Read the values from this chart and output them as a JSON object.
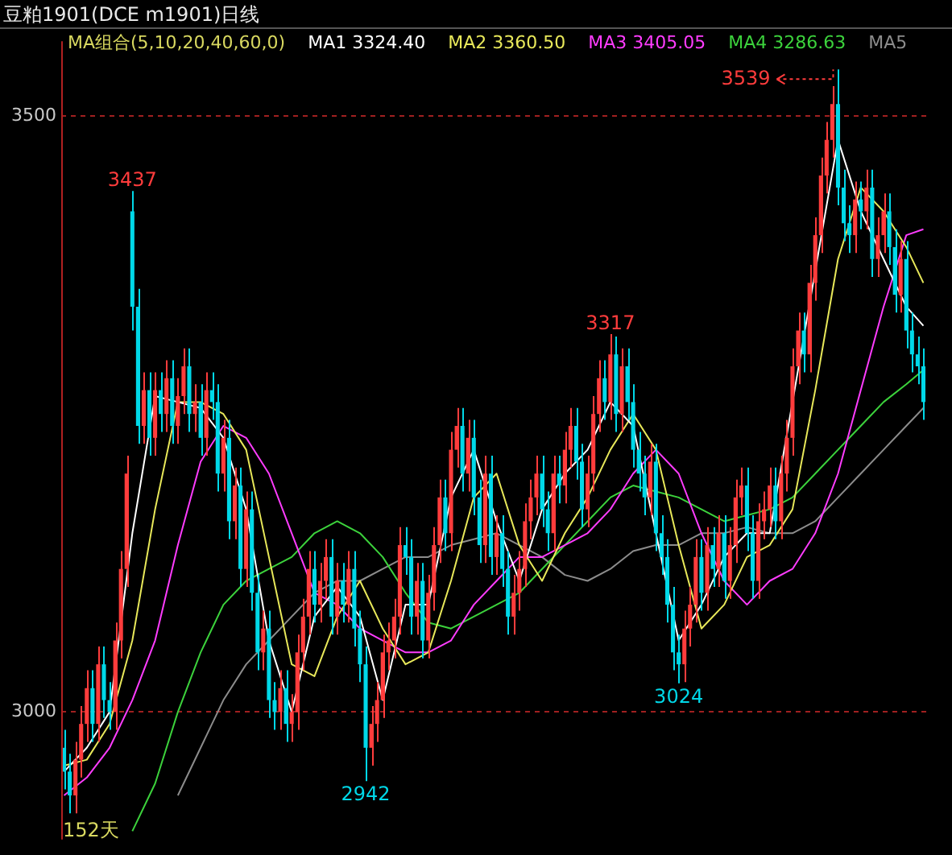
{
  "chart_data": {
    "type": "candlestick",
    "title": "豆粕1901(DCE m1901)日线",
    "legend_title": "MA组合(5,10,20,40,60,0)",
    "legend": "top",
    "grid": "y",
    "tick_labels": "y",
    "ylim": [
      2893,
      3560
    ],
    "yticks": [
      3000,
      3500
    ],
    "categories": [
      null,
      null,
      null,
      null,
      null,
      null,
      null,
      null,
      null,
      null,
      null,
      null,
      null,
      null,
      null,
      null,
      null,
      null,
      null,
      null,
      null,
      null,
      null,
      null,
      null,
      null,
      null,
      null,
      null,
      null,
      null,
      null,
      null,
      null,
      null,
      null,
      null,
      null,
      null,
      null,
      null,
      null,
      null,
      null,
      null,
      null,
      null,
      null,
      null,
      null,
      null,
      null,
      null,
      null,
      null,
      null,
      null,
      null,
      null,
      null,
      null,
      null,
      null,
      null,
      null,
      null,
      null,
      null,
      null,
      null,
      null,
      null,
      null,
      null,
      null,
      null,
      null,
      null,
      null,
      null,
      null,
      null,
      null,
      null,
      null,
      null,
      null,
      null,
      null,
      null,
      null,
      null,
      null,
      null,
      null,
      null,
      null,
      null,
      null,
      null,
      null,
      null,
      null,
      null,
      null,
      null,
      null,
      null,
      null,
      null,
      null,
      null,
      null,
      null,
      null,
      null,
      null,
      null,
      null,
      null,
      null,
      null,
      null,
      null,
      null,
      null,
      null,
      null,
      null,
      null,
      null,
      null,
      null,
      null,
      null,
      null,
      null,
      null,
      null,
      null,
      null,
      null,
      null,
      null,
      null,
      null,
      null,
      null,
      null,
      null,
      null,
      null
    ],
    "ohlc": [
      [
        2970,
        2985,
        2935,
        2950
      ],
      [
        2950,
        2965,
        2915,
        2930
      ],
      [
        2930,
        2975,
        2915,
        2960
      ],
      [
        2960,
        3005,
        2945,
        2990
      ],
      [
        2990,
        3035,
        2975,
        3020
      ],
      [
        3020,
        3035,
        2975,
        2990
      ],
      [
        2990,
        3055,
        2975,
        3040
      ],
      [
        3040,
        3055,
        2995,
        3010
      ],
      [
        3010,
        3025,
        2985,
        3000
      ],
      [
        3000,
        3075,
        2985,
        3060
      ],
      [
        3060,
        3135,
        3045,
        3120
      ],
      [
        3120,
        3215,
        3105,
        3200
      ],
      [
        3420,
        3437,
        3320,
        3340
      ],
      [
        3340,
        3355,
        3225,
        3240
      ],
      [
        3240,
        3285,
        3225,
        3270
      ],
      [
        3270,
        3285,
        3215,
        3230
      ],
      [
        3230,
        3285,
        3215,
        3270
      ],
      [
        3270,
        3285,
        3235,
        3250
      ],
      [
        3250,
        3295,
        3235,
        3280
      ],
      [
        3280,
        3295,
        3225,
        3240
      ],
      [
        3240,
        3280,
        3225,
        3265
      ],
      [
        3265,
        3305,
        3250,
        3290
      ],
      [
        3290,
        3305,
        3235,
        3250
      ],
      [
        3250,
        3275,
        3235,
        3260
      ],
      [
        3260,
        3275,
        3215,
        3230
      ],
      [
        3230,
        3285,
        3215,
        3270
      ],
      [
        3270,
        3285,
        3245,
        3260
      ],
      [
        3260,
        3275,
        3185,
        3200
      ],
      [
        3200,
        3245,
        3185,
        3230
      ],
      [
        3230,
        3245,
        3145,
        3160
      ],
      [
        3160,
        3205,
        3145,
        3190
      ],
      [
        3190,
        3205,
        3105,
        3120
      ],
      [
        3120,
        3185,
        3105,
        3170
      ],
      [
        3170,
        3185,
        3085,
        3100
      ],
      [
        3100,
        3115,
        3035,
        3050
      ],
      [
        3050,
        3085,
        3035,
        3070
      ],
      [
        3070,
        3085,
        2995,
        3010
      ],
      [
        3010,
        3025,
        2985,
        3000
      ],
      [
        3000,
        3035,
        2985,
        3020
      ],
      [
        3020,
        3035,
        2975,
        2990
      ],
      [
        2990,
        3015,
        2975,
        3000
      ],
      [
        3000,
        3065,
        2985,
        3050
      ],
      [
        3050,
        3095,
        3035,
        3080
      ],
      [
        3080,
        3135,
        3065,
        3120
      ],
      [
        3120,
        3135,
        3075,
        3090
      ],
      [
        3090,
        3125,
        3075,
        3110
      ],
      [
        3110,
        3145,
        3095,
        3130
      ],
      [
        3130,
        3145,
        3065,
        3080
      ],
      [
        3080,
        3125,
        3065,
        3110
      ],
      [
        3110,
        3125,
        3075,
        3090
      ],
      [
        3090,
        3135,
        3075,
        3120
      ],
      [
        3120,
        3135,
        3055,
        3070
      ],
      [
        3070,
        3085,
        3025,
        3040
      ],
      [
        3040,
        3055,
        2942,
        2970
      ],
      [
        2970,
        3005,
        2955,
        2990
      ],
      [
        2990,
        3025,
        2975,
        3010
      ],
      [
        3010,
        3065,
        2995,
        3050
      ],
      [
        3050,
        3075,
        3035,
        3060
      ],
      [
        3060,
        3095,
        3045,
        3080
      ],
      [
        3080,
        3155,
        3065,
        3140
      ],
      [
        3140,
        3155,
        3115,
        3130
      ],
      [
        3130,
        3145,
        3065,
        3080
      ],
      [
        3080,
        3125,
        3065,
        3110
      ],
      [
        3110,
        3125,
        3045,
        3060
      ],
      [
        3060,
        3115,
        3045,
        3100
      ],
      [
        3100,
        3155,
        3085,
        3140
      ],
      [
        3140,
        3195,
        3125,
        3180
      ],
      [
        3180,
        3195,
        3135,
        3150
      ],
      [
        3150,
        3235,
        3135,
        3220
      ],
      [
        3220,
        3255,
        3205,
        3240
      ],
      [
        3240,
        3255,
        3185,
        3200
      ],
      [
        3200,
        3245,
        3185,
        3230
      ],
      [
        3230,
        3245,
        3165,
        3180
      ],
      [
        3180,
        3195,
        3125,
        3140
      ],
      [
        3140,
        3215,
        3125,
        3200
      ],
      [
        3200,
        3215,
        3115,
        3130
      ],
      [
        3130,
        3165,
        3115,
        3150
      ],
      [
        3150,
        3165,
        3105,
        3120
      ],
      [
        3120,
        3135,
        3065,
        3080
      ],
      [
        3080,
        3115,
        3065,
        3100
      ],
      [
        3100,
        3135,
        3085,
        3120
      ],
      [
        3120,
        3175,
        3105,
        3160
      ],
      [
        3160,
        3195,
        3145,
        3180
      ],
      [
        3180,
        3215,
        3165,
        3200
      ],
      [
        3200,
        3215,
        3155,
        3170
      ],
      [
        3170,
        3185,
        3135,
        3150
      ],
      [
        3150,
        3215,
        3135,
        3200
      ],
      [
        3200,
        3215,
        3175,
        3190
      ],
      [
        3190,
        3235,
        3175,
        3220
      ],
      [
        3220,
        3255,
        3205,
        3240
      ],
      [
        3240,
        3255,
        3195,
        3210
      ],
      [
        3210,
        3225,
        3155,
        3170
      ],
      [
        3170,
        3215,
        3155,
        3200
      ],
      [
        3200,
        3265,
        3185,
        3250
      ],
      [
        3250,
        3295,
        3235,
        3280
      ],
      [
        3280,
        3295,
        3245,
        3260
      ],
      [
        3260,
        3317,
        3245,
        3300
      ],
      [
        3300,
        3315,
        3235,
        3250
      ],
      [
        3250,
        3305,
        3235,
        3290
      ],
      [
        3290,
        3305,
        3245,
        3260
      ],
      [
        3260,
        3275,
        3205,
        3220
      ],
      [
        3220,
        3235,
        3185,
        3200
      ],
      [
        3200,
        3215,
        3165,
        3180
      ],
      [
        3180,
        3225,
        3165,
        3210
      ],
      [
        3210,
        3225,
        3135,
        3150
      ],
      [
        3150,
        3165,
        3115,
        3130
      ],
      [
        3130,
        3145,
        3075,
        3090
      ],
      [
        3090,
        3105,
        3035,
        3050
      ],
      [
        3050,
        3065,
        3024,
        3040
      ],
      [
        3040,
        3085,
        3025,
        3070
      ],
      [
        3070,
        3105,
        3055,
        3090
      ],
      [
        3090,
        3145,
        3075,
        3130
      ],
      [
        3130,
        3145,
        3085,
        3100
      ],
      [
        3100,
        3155,
        3085,
        3140
      ],
      [
        3140,
        3155,
        3105,
        3120
      ],
      [
        3120,
        3165,
        3105,
        3150
      ],
      [
        3150,
        3165,
        3095,
        3110
      ],
      [
        3110,
        3155,
        3095,
        3140
      ],
      [
        3140,
        3195,
        3125,
        3180
      ],
      [
        3180,
        3205,
        3165,
        3190
      ],
      [
        3190,
        3205,
        3135,
        3150
      ],
      [
        3150,
        3165,
        3095,
        3110
      ],
      [
        3110,
        3175,
        3095,
        3160
      ],
      [
        3160,
        3185,
        3145,
        3170
      ],
      [
        3170,
        3205,
        3155,
        3190
      ],
      [
        3190,
        3205,
        3145,
        3160
      ],
      [
        3160,
        3215,
        3145,
        3200
      ],
      [
        3200,
        3245,
        3185,
        3230
      ],
      [
        3230,
        3305,
        3215,
        3290
      ],
      [
        3290,
        3335,
        3275,
        3320
      ],
      [
        3320,
        3335,
        3285,
        3300
      ],
      [
        3300,
        3375,
        3285,
        3360
      ],
      [
        3360,
        3415,
        3345,
        3400
      ],
      [
        3400,
        3465,
        3385,
        3450
      ],
      [
        3450,
        3495,
        3435,
        3480
      ],
      [
        3480,
        3525,
        3465,
        3510
      ],
      [
        3510,
        3539,
        3425,
        3440
      ],
      [
        3440,
        3455,
        3395,
        3410
      ],
      [
        3410,
        3425,
        3385,
        3400
      ],
      [
        3400,
        3445,
        3385,
        3430
      ],
      [
        3430,
        3445,
        3405,
        3420
      ],
      [
        3420,
        3455,
        3405,
        3440
      ],
      [
        3440,
        3455,
        3365,
        3380
      ],
      [
        3380,
        3415,
        3365,
        3400
      ],
      [
        3400,
        3435,
        3385,
        3420
      ],
      [
        3420,
        3435,
        3375,
        3390
      ],
      [
        3390,
        3405,
        3335,
        3350
      ],
      [
        3350,
        3395,
        3335,
        3380
      ],
      [
        3380,
        3395,
        3305,
        3320
      ],
      [
        3320,
        3335,
        3285,
        3300
      ],
      [
        3300,
        3315,
        3275,
        3290
      ],
      [
        3290,
        3305,
        3245,
        3260
      ]
    ],
    "series": [
      {
        "name": "MA1 3324.40",
        "type": "line",
        "color": "#ffffff",
        "values": [
          2950,
          null,
          null,
          null,
          2970,
          null,
          null,
          null,
          3000,
          null,
          null,
          null,
          3150,
          null,
          null,
          null,
          3265,
          null,
          null,
          null,
          3260,
          null,
          null,
          null,
          3255,
          null,
          null,
          null,
          3230,
          null,
          null,
          null,
          3170,
          null,
          null,
          null,
          3060,
          null,
          null,
          null,
          3000,
          null,
          null,
          null,
          3080,
          null,
          null,
          null,
          3105,
          null,
          null,
          null,
          3080,
          null,
          null,
          null,
          3010,
          null,
          null,
          null,
          3090,
          null,
          null,
          null,
          3090,
          null,
          null,
          null,
          3180,
          null,
          null,
          null,
          3220,
          null,
          null,
          null,
          3160,
          null,
          null,
          null,
          3110,
          null,
          null,
          null,
          3170,
          null,
          null,
          null,
          3200,
          null,
          null,
          null,
          3220,
          null,
          null,
          null,
          3260,
          null,
          null,
          null,
          3240,
          null,
          null,
          null,
          null,
          null,
          null,
          null,
          3060,
          null,
          null,
          null,
          3090,
          null,
          null,
          null,
          3130,
          null,
          null,
          null,
          3150,
          null,
          null,
          null,
          3150,
          null,
          null,
          null,
          null,
          null,
          null,
          null,
          null,
          null,
          null,
          null,
          3480,
          null,
          null,
          null,
          3420,
          null,
          null,
          null,
          3380,
          null,
          null,
          null,
          3340,
          null,
          null,
          3324
        ]
      },
      {
        "name": "MA2 3360.50",
        "type": "line",
        "color": "#e8e85a",
        "values": [
          2955,
          null,
          null,
          null,
          2960,
          null,
          null,
          null,
          2990,
          null,
          null,
          null,
          3060,
          null,
          null,
          null,
          3170,
          null,
          null,
          null,
          3260,
          null,
          null,
          null,
          3260,
          null,
          null,
          null,
          3250,
          null,
          null,
          null,
          3220,
          null,
          null,
          null,
          3130,
          null,
          null,
          null,
          3040,
          null,
          null,
          null,
          3030,
          null,
          null,
          null,
          3080,
          null,
          null,
          null,
          3110,
          null,
          null,
          null,
          3070,
          null,
          null,
          null,
          3040,
          null,
          null,
          null,
          3050,
          null,
          null,
          null,
          3110,
          null,
          null,
          null,
          3180,
          null,
          null,
          null,
          3200,
          null,
          null,
          null,
          3140,
          null,
          null,
          null,
          3110,
          null,
          null,
          null,
          3150,
          null,
          null,
          null,
          3180,
          null,
          null,
          null,
          3220,
          null,
          null,
          null,
          3250,
          null,
          null,
          null,
          3220,
          null,
          null,
          null,
          3140,
          null,
          null,
          null,
          3070,
          null,
          null,
          null,
          3090,
          null,
          null,
          null,
          3130,
          null,
          null,
          null,
          3140,
          null,
          null,
          null,
          3170,
          null,
          null,
          null,
          3270,
          null,
          null,
          null,
          3380,
          null,
          null,
          null,
          3440,
          null,
          null,
          null,
          3420,
          null,
          null,
          null,
          3390,
          null,
          null,
          3360
        ]
      },
      {
        "name": "MA3 3405.05",
        "type": "line",
        "color": "#ff3cff",
        "values": [
          2930,
          null,
          null,
          null,
          2945,
          null,
          null,
          null,
          2970,
          null,
          null,
          null,
          3010,
          null,
          null,
          null,
          3060,
          null,
          null,
          null,
          3140,
          null,
          null,
          null,
          3210,
          null,
          null,
          null,
          3240,
          null,
          null,
          null,
          3230,
          null,
          null,
          null,
          3200,
          null,
          null,
          null,
          3150,
          null,
          null,
          null,
          3100,
          null,
          null,
          null,
          3090,
          null,
          null,
          null,
          3070,
          null,
          null,
          null,
          3060,
          null,
          null,
          null,
          3050,
          null,
          null,
          null,
          3050,
          null,
          null,
          null,
          3060,
          null,
          null,
          null,
          3090,
          null,
          null,
          null,
          3110,
          null,
          null,
          null,
          3130,
          null,
          null,
          null,
          3130,
          null,
          null,
          null,
          3140,
          null,
          null,
          null,
          3150,
          null,
          null,
          null,
          3170,
          null,
          null,
          null,
          3200,
          null,
          null,
          null,
          3220,
          null,
          null,
          null,
          3200,
          null,
          null,
          null,
          3150,
          null,
          null,
          null,
          3110,
          null,
          null,
          null,
          3090,
          null,
          null,
          null,
          3110,
          null,
          null,
          null,
          3120,
          null,
          null,
          null,
          3150,
          null,
          null,
          null,
          3200,
          null,
          null,
          null,
          3270,
          null,
          null,
          null,
          3340,
          null,
          null,
          null,
          3400,
          null,
          null,
          3405
        ]
      },
      {
        "name": "MA4 3286.63",
        "type": "line",
        "color": "#3cd23c",
        "values": [
          null,
          null,
          null,
          null,
          null,
          null,
          null,
          null,
          null,
          null,
          null,
          null,
          2900,
          null,
          null,
          null,
          2940,
          null,
          null,
          null,
          3000,
          null,
          null,
          null,
          3050,
          null,
          null,
          null,
          3090,
          null,
          null,
          null,
          3110,
          null,
          null,
          null,
          3120,
          null,
          null,
          null,
          3130,
          null,
          null,
          null,
          3150,
          null,
          null,
          null,
          3160,
          null,
          null,
          null,
          3150,
          null,
          null,
          null,
          3130,
          null,
          null,
          null,
          3100,
          null,
          null,
          null,
          3075,
          null,
          null,
          null,
          3070,
          null,
          null,
          null,
          3080,
          null,
          null,
          null,
          3090,
          null,
          null,
          null,
          3100,
          null,
          null,
          null,
          3120,
          null,
          null,
          null,
          3140,
          null,
          null,
          null,
          3160,
          null,
          null,
          null,
          3180,
          null,
          null,
          null,
          3190,
          null,
          null,
          null,
          3185,
          null,
          null,
          null,
          3180,
          null,
          null,
          null,
          3170,
          null,
          null,
          null,
          3160,
          null,
          null,
          null,
          3165,
          null,
          null,
          null,
          3170,
          null,
          null,
          null,
          3180,
          null,
          null,
          null,
          3200,
          null,
          null,
          null,
          3220,
          null,
          null,
          null,
          3240,
          null,
          null,
          null,
          3260,
          null,
          null,
          null,
          3275,
          null,
          null,
          3287
        ]
      },
      {
        "name": "MA5",
        "type": "line",
        "color": "#8c8c8c",
        "values": [
          null,
          null,
          null,
          null,
          null,
          null,
          null,
          null,
          null,
          null,
          null,
          null,
          null,
          null,
          null,
          null,
          null,
          null,
          null,
          null,
          2930,
          null,
          null,
          null,
          2970,
          null,
          null,
          null,
          3010,
          null,
          null,
          null,
          3040,
          null,
          null,
          null,
          3060,
          null,
          null,
          null,
          3080,
          null,
          null,
          null,
          3100,
          null,
          null,
          null,
          3110,
          null,
          null,
          null,
          3110,
          null,
          null,
          null,
          3120,
          null,
          null,
          null,
          3130,
          null,
          null,
          null,
          3130,
          null,
          null,
          null,
          3140,
          null,
          null,
          null,
          3145,
          null,
          null,
          null,
          3150,
          null,
          null,
          null,
          3140,
          null,
          null,
          null,
          3130,
          null,
          null,
          null,
          3115,
          null,
          null,
          null,
          3110,
          null,
          null,
          null,
          3120,
          null,
          null,
          null,
          3135,
          null,
          null,
          null,
          3140,
          null,
          null,
          null,
          3140,
          null,
          null,
          null,
          3150,
          null,
          null,
          null,
          3150,
          null,
          null,
          null,
          3155,
          null,
          null,
          null,
          3150,
          null,
          null,
          null,
          3150,
          null,
          null,
          null,
          3160,
          null,
          null,
          null,
          3180,
          null,
          null,
          null,
          3200,
          null,
          null,
          null,
          3220,
          null,
          null,
          null,
          3240,
          null,
          null,
          3255
        ]
      }
    ],
    "annotations": [
      {
        "text": "3437",
        "y": 3437
      },
      "3539",
      {
        "text": "3317",
        "y": 3317
      },
      {
        "text": "3024",
        "y": 3024
      },
      {
        "text": "2942",
        "y": 2942
      },
      "152天"
    ]
  }
}
